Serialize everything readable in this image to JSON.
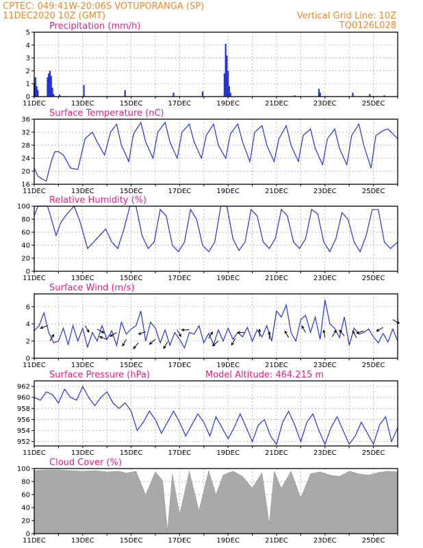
{
  "header": {
    "left_line1": "CPTEC:   049:41W-20:06S   VOTUPORANGA (SP)",
    "left_line2": "11DEC2020 10Z (GMT)",
    "right_line1": "Vertical Grid Line: 10Z",
    "right_line2": "TQ0126L028"
  },
  "colors": {
    "header": "#e8892b",
    "panel_title": "#e0218a",
    "series": "#2633d6",
    "cloud": "#a9a9a9",
    "wind_arrow": "#000000"
  },
  "chart_data": [
    {
      "id": "precip",
      "type": "bar",
      "title": "Precipitation (mm/h)",
      "ylim": [
        0,
        5
      ],
      "yticks": [
        0,
        1,
        2,
        3,
        4,
        5
      ],
      "xticks": [
        "11DEC",
        "13DEC",
        "15DEC",
        "17DEC",
        "19DEC",
        "21DEC",
        "23DEC",
        "25DEC"
      ],
      "x_unit": "day",
      "xlim": [
        0,
        15
      ],
      "x": [
        0.0,
        0.05,
        0.1,
        0.15,
        0.55,
        0.6,
        0.65,
        0.7,
        0.75,
        0.8,
        1.05,
        2.05,
        3.75,
        5.75,
        6.95,
        7.85,
        7.9,
        7.95,
        8.0,
        8.05,
        8.1,
        10.75,
        11.75,
        11.8,
        13.15,
        13.85,
        14.45
      ],
      "values": [
        1.0,
        1.5,
        0.8,
        0.5,
        1.5,
        1.8,
        2.0,
        1.6,
        0.7,
        0.2,
        0.15,
        0.9,
        0.5,
        0.3,
        0.4,
        1.8,
        4.1,
        3.2,
        2.0,
        0.8,
        0.3,
        0.1,
        0.6,
        0.3,
        0.3,
        0.2,
        0.1
      ]
    },
    {
      "id": "temp",
      "type": "line",
      "title": "Surface Temperature (nC)",
      "ylim": [
        16,
        36
      ],
      "yticks": [
        16,
        20,
        24,
        28,
        32,
        36
      ],
      "xticks": [
        "11DEC",
        "13DEC",
        "15DEC",
        "17DEC",
        "19DEC",
        "21DEC",
        "23DEC",
        "25DEC"
      ],
      "x_unit": "day",
      "xlim": [
        0,
        15
      ],
      "x": [
        0.0,
        0.15,
        0.35,
        0.5,
        0.7,
        0.85,
        1.0,
        1.2,
        1.5,
        1.8,
        2.1,
        2.4,
        2.6,
        2.9,
        3.15,
        3.4,
        3.6,
        3.9,
        4.1,
        4.4,
        4.6,
        4.9,
        5.1,
        5.4,
        5.6,
        5.9,
        6.1,
        6.4,
        6.6,
        6.9,
        7.1,
        7.4,
        7.6,
        7.9,
        8.1,
        8.4,
        8.6,
        8.9,
        9.1,
        9.4,
        9.6,
        9.9,
        10.1,
        10.4,
        10.6,
        10.9,
        11.1,
        11.4,
        11.6,
        11.9,
        12.1,
        12.4,
        12.6,
        12.9,
        13.1,
        13.4,
        13.6,
        13.9,
        14.1,
        14.4,
        14.6,
        15.0
      ],
      "values": [
        21,
        18.5,
        17.5,
        17,
        23,
        26,
        26,
        25,
        21,
        20.5,
        30,
        32,
        29,
        25,
        32,
        34.5,
        28,
        23,
        31.5,
        35,
        29,
        24,
        32,
        35,
        29,
        24,
        32,
        34.5,
        29,
        24,
        31,
        34.5,
        28,
        24,
        31.5,
        34.5,
        29,
        23,
        32,
        34,
        28,
        23,
        30,
        34,
        28,
        23,
        31,
        33,
        27,
        22,
        30,
        33,
        27,
        22,
        31,
        34.5,
        28,
        21,
        31,
        32.5,
        33,
        30
      ]
    },
    {
      "id": "rh",
      "type": "line",
      "title": "Relative Humidity (%)",
      "ylim": [
        0,
        100
      ],
      "yticks": [
        0,
        20,
        40,
        60,
        80,
        100
      ],
      "xticks": [
        "11DEC",
        "13DEC",
        "15DEC",
        "17DEC",
        "19DEC",
        "21DEC",
        "23DEC",
        "25DEC"
      ],
      "x_unit": "day",
      "xlim": [
        0,
        15
      ],
      "x": [
        0.0,
        0.15,
        0.35,
        0.55,
        0.75,
        0.9,
        1.1,
        1.35,
        1.65,
        1.9,
        2.2,
        2.45,
        2.7,
        2.95,
        3.2,
        3.45,
        3.7,
        3.95,
        4.2,
        4.45,
        4.7,
        4.95,
        5.2,
        5.45,
        5.7,
        5.95,
        6.2,
        6.45,
        6.7,
        6.95,
        7.2,
        7.45,
        7.7,
        7.95,
        8.2,
        8.45,
        8.7,
        8.95,
        9.2,
        9.45,
        9.7,
        9.95,
        10.2,
        10.45,
        10.7,
        10.95,
        11.2,
        11.45,
        11.7,
        11.95,
        12.2,
        12.45,
        12.7,
        12.95,
        13.2,
        13.45,
        13.7,
        13.95,
        14.2,
        14.45,
        14.7,
        15.0
      ],
      "values": [
        85,
        100,
        100,
        100,
        75,
        55,
        75,
        88,
        100,
        75,
        35,
        45,
        55,
        65,
        45,
        35,
        65,
        100,
        100,
        55,
        35,
        45,
        95,
        85,
        40,
        30,
        45,
        95,
        80,
        40,
        30,
        45,
        100,
        100,
        50,
        32,
        45,
        95,
        85,
        45,
        35,
        50,
        95,
        85,
        45,
        35,
        50,
        95,
        88,
        45,
        30,
        50,
        90,
        80,
        45,
        30,
        55,
        95,
        95,
        45,
        35,
        45
      ]
    },
    {
      "id": "wind",
      "type": "line",
      "title": "Surface Wind (m/s)",
      "ylim": [
        0,
        7.5
      ],
      "yticks": [
        0,
        2,
        4,
        6
      ],
      "xticks": [
        "11DEC",
        "13DEC",
        "15DEC",
        "17DEC",
        "19DEC",
        "21DEC",
        "23DEC",
        "25DEC"
      ],
      "x_unit": "day",
      "xlim": [
        0,
        15
      ],
      "x": [
        0.0,
        0.2,
        0.4,
        0.6,
        0.8,
        1.0,
        1.2,
        1.4,
        1.6,
        1.8,
        2.0,
        2.2,
        2.4,
        2.6,
        2.8,
        3.0,
        3.2,
        3.4,
        3.6,
        3.8,
        4.0,
        4.2,
        4.4,
        4.6,
        4.8,
        5.0,
        5.2,
        5.4,
        5.6,
        5.8,
        6.0,
        6.2,
        6.4,
        6.6,
        6.8,
        7.0,
        7.2,
        7.4,
        7.6,
        7.8,
        8.0,
        8.2,
        8.4,
        8.6,
        8.8,
        9.0,
        9.2,
        9.4,
        9.6,
        9.8,
        10.0,
        10.2,
        10.4,
        10.6,
        10.8,
        11.0,
        11.2,
        11.4,
        11.6,
        11.8,
        12.0,
        12.2,
        12.4,
        12.6,
        12.8,
        13.0,
        13.2,
        13.4,
        13.6,
        13.8,
        14.0,
        14.2,
        14.4,
        14.6,
        14.8,
        15.0
      ],
      "values": [
        3.2,
        3.8,
        5.3,
        3.0,
        1.8,
        2.0,
        3.5,
        1.6,
        3.8,
        2.0,
        3.5,
        1.3,
        3.0,
        2.0,
        3.8,
        2.2,
        3.2,
        1.5,
        4.2,
        2.8,
        3.4,
        3.8,
        5.5,
        2.0,
        4.2,
        3.5,
        1.8,
        3.3,
        1.5,
        3.0,
        2.2,
        1.2,
        3.0,
        2.8,
        3.8,
        1.8,
        2.9,
        1.6,
        3.3,
        2.0,
        3.5,
        2.2,
        3.0,
        2.5,
        3.6,
        2.0,
        3.3,
        2.5,
        3.8,
        2.0,
        5.5,
        4.8,
        6.2,
        3.0,
        2.0,
        4.5,
        5.0,
        3.0,
        4.8,
        2.2,
        6.8,
        4.0,
        3.5,
        2.4,
        4.8,
        1.5,
        3.5,
        2.8,
        3.0,
        3.4,
        2.5,
        1.8,
        2.9,
        1.9,
        3.4,
        2.0
      ]
    },
    {
      "id": "pressure",
      "type": "line",
      "title": "Surface Pressure (hPa)",
      "annotation": "Model Altitude: 464.215  m",
      "ylim": [
        951.2,
        963
      ],
      "yticks": [
        952,
        954,
        956,
        958,
        960,
        962
      ],
      "xticks": [
        "11DEC",
        "13DEC",
        "15DEC",
        "17DEC",
        "19DEC",
        "21DEC",
        "23DEC",
        "25DEC"
      ],
      "x_unit": "day",
      "xlim": [
        0,
        15
      ],
      "x": [
        0.0,
        0.25,
        0.5,
        0.75,
        1.0,
        1.25,
        1.5,
        1.75,
        2.0,
        2.25,
        2.5,
        2.75,
        3.0,
        3.25,
        3.5,
        3.75,
        4.0,
        4.25,
        4.5,
        4.75,
        5.0,
        5.25,
        5.5,
        5.75,
        6.0,
        6.25,
        6.5,
        6.75,
        7.0,
        7.25,
        7.5,
        7.75,
        8.0,
        8.25,
        8.5,
        8.75,
        9.0,
        9.25,
        9.5,
        9.75,
        10.0,
        10.25,
        10.5,
        10.75,
        11.0,
        11.25,
        11.5,
        11.75,
        12.0,
        12.25,
        12.5,
        12.75,
        13.0,
        13.25,
        13.5,
        13.75,
        14.0,
        14.25,
        14.5,
        14.75,
        15.0
      ],
      "values": [
        960,
        959.5,
        961,
        960.5,
        959,
        961.5,
        960,
        959.5,
        962,
        960,
        958.5,
        960,
        961,
        959,
        958,
        959,
        957.5,
        954,
        955.5,
        957.5,
        956,
        953.5,
        955.5,
        957.5,
        955.5,
        953,
        955,
        957,
        955.5,
        953,
        956.5,
        954.5,
        952.5,
        954.5,
        957,
        954.5,
        952,
        955,
        956,
        953,
        951.5,
        955.5,
        957.5,
        955,
        952,
        955.5,
        957,
        954,
        951.5,
        954.5,
        956.5,
        954,
        951.5,
        953,
        955.5,
        953.5,
        951.5,
        955,
        956.5,
        952,
        954.5
      ]
    },
    {
      "id": "cloud",
      "type": "area",
      "title": "Cloud Cover (%)",
      "ylim": [
        0,
        100
      ],
      "yticks": [
        0,
        20,
        40,
        60,
        80,
        100
      ],
      "xticks": [
        "11DEC",
        "13DEC",
        "15DEC",
        "17DEC",
        "19DEC",
        "21DEC",
        "23DEC",
        "25DEC"
      ],
      "x_unit": "day",
      "xlim": [
        0,
        15
      ],
      "x": [
        0.0,
        0.5,
        1.0,
        1.5,
        2.0,
        2.5,
        3.0,
        3.5,
        3.8,
        4.2,
        4.6,
        5.0,
        5.3,
        5.5,
        5.7,
        6.0,
        6.4,
        6.8,
        7.2,
        7.5,
        7.8,
        8.2,
        8.6,
        9.0,
        9.4,
        9.7,
        9.9,
        10.2,
        10.6,
        11.0,
        11.4,
        11.8,
        12.2,
        12.6,
        13.0,
        13.4,
        13.8,
        14.2,
        14.6,
        15.0
      ],
      "values": [
        97,
        98,
        98,
        97,
        96,
        97,
        95,
        96,
        93,
        96,
        60,
        95,
        82,
        5,
        92,
        30,
        96,
        35,
        97,
        60,
        90,
        96,
        88,
        70,
        94,
        15,
        96,
        70,
        96,
        55,
        92,
        95,
        90,
        88,
        96,
        92,
        90,
        94,
        96,
        95
      ]
    }
  ],
  "wind_arrows": [
    {
      "x": 0.55,
      "y": 3.8,
      "angle": 200
    },
    {
      "x": 0.65,
      "y": 2.0,
      "angle": 60
    },
    {
      "x": 2.1,
      "y": 3.8,
      "angle": 300
    },
    {
      "x": 2.6,
      "y": 3.4,
      "angle": 330
    },
    {
      "x": 3.0,
      "y": 2.2,
      "angle": 160
    },
    {
      "x": 3.4,
      "y": 3.0,
      "angle": 210
    },
    {
      "x": 3.8,
      "y": 2.2,
      "angle": 240
    },
    {
      "x": 4.3,
      "y": 1.8,
      "angle": 230
    },
    {
      "x": 4.6,
      "y": 3.1,
      "angle": 200
    },
    {
      "x": 5.0,
      "y": 2.2,
      "angle": 220
    },
    {
      "x": 5.5,
      "y": 1.9,
      "angle": 240
    },
    {
      "x": 5.9,
      "y": 3.3,
      "angle": 300
    },
    {
      "x": 6.4,
      "y": 3.3,
      "angle": 180
    },
    {
      "x": 7.2,
      "y": 2.3,
      "angle": 60
    },
    {
      "x": 7.6,
      "y": 2.0,
      "angle": 220
    },
    {
      "x": 8.3,
      "y": 2.3,
      "angle": 240
    },
    {
      "x": 8.7,
      "y": 3.0,
      "angle": 180
    },
    {
      "x": 9.3,
      "y": 2.5,
      "angle": 90
    },
    {
      "x": 9.7,
      "y": 2.2,
      "angle": 90
    },
    {
      "x": 10.5,
      "y": 2.4,
      "angle": 120
    },
    {
      "x": 11.2,
      "y": 3.0,
      "angle": 120
    },
    {
      "x": 12.0,
      "y": 2.4,
      "angle": 100
    },
    {
      "x": 12.3,
      "y": 2.5,
      "angle": 60
    },
    {
      "x": 12.8,
      "y": 2.6,
      "angle": 130
    },
    {
      "x": 13.3,
      "y": 2.4,
      "angle": 120
    },
    {
      "x": 13.6,
      "y": 3.2,
      "angle": 200
    },
    {
      "x": 14.4,
      "y": 3.6,
      "angle": 210
    },
    {
      "x": 14.8,
      "y": 4.5,
      "angle": 330
    }
  ]
}
